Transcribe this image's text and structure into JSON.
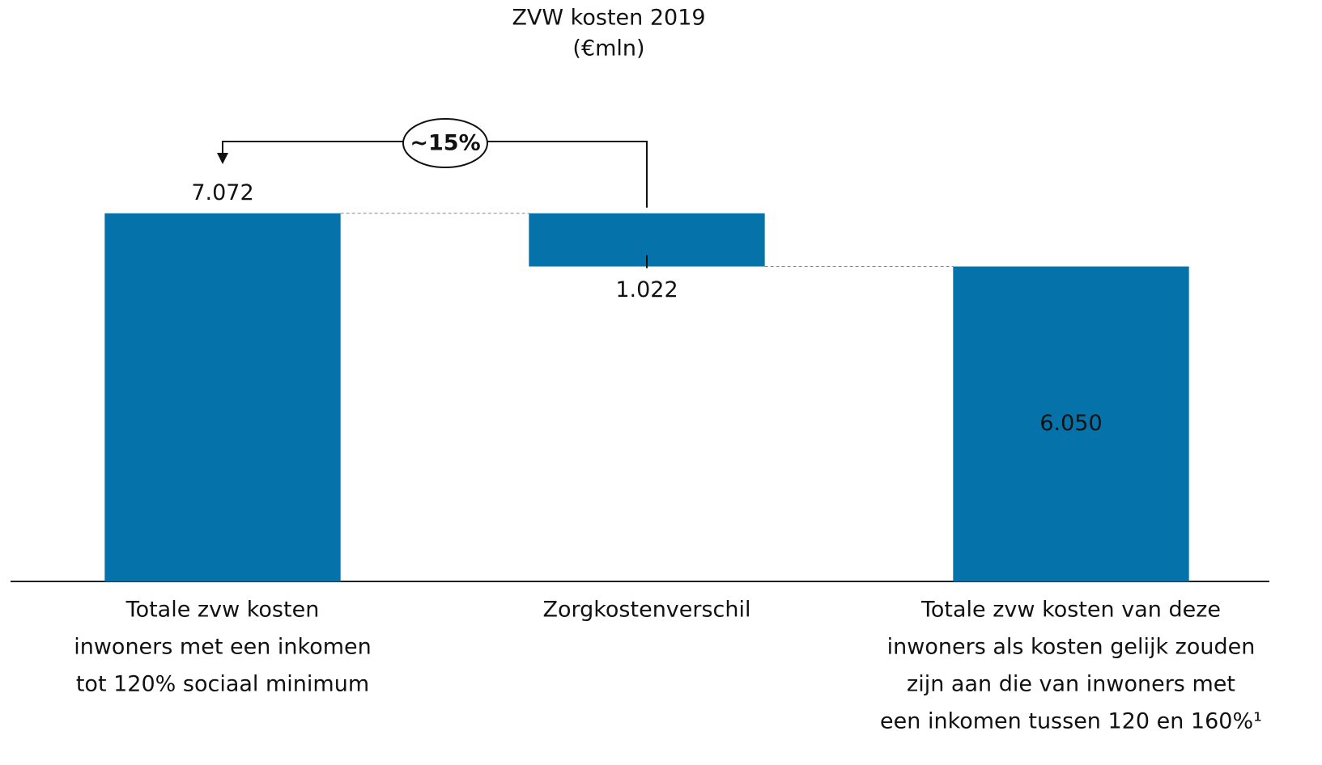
{
  "chart_data": {
    "type": "waterfall",
    "title": "ZVW kosten 2019",
    "subtitle": "(€mln)",
    "categories": [
      [
        "Totale zvw kosten",
        "inwoners met een inkomen",
        "tot 120% sociaal minimum"
      ],
      [
        "Zorgkostenverschil"
      ],
      [
        "Totale zvw kosten van deze",
        "inwoners als kosten gelijk zouden",
        "zijn aan die van inwoners met",
        "een inkomen tussen 120 en 160%¹"
      ]
    ],
    "values": [
      7072,
      1022,
      6050
    ],
    "value_labels": [
      "7.072",
      "1.022",
      "6.050"
    ],
    "kinds": [
      "total",
      "decrease",
      "total"
    ],
    "label_positions": [
      "above",
      "below",
      "inside"
    ],
    "color": "#0573aa",
    "ylim": [
      0,
      8000
    ],
    "annotation": "~15%"
  }
}
